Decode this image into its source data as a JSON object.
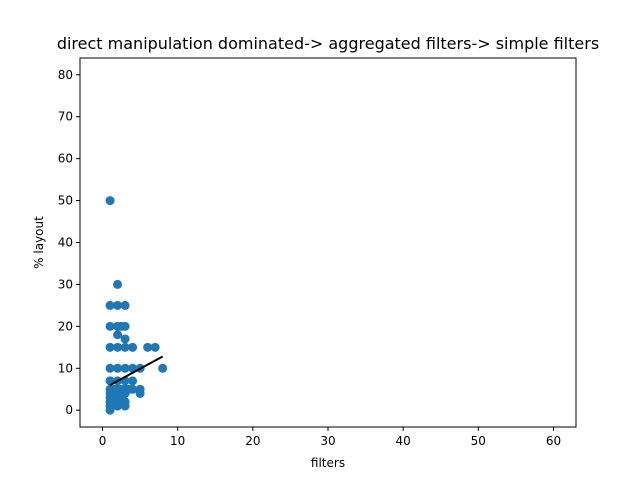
{
  "chart_data": {
    "type": "scatter",
    "title": "direct manipulation dominated-> aggregated filters-> simple filters",
    "xlabel": "filters",
    "ylabel": "% layout",
    "xlim": [
      -3.0,
      63.0
    ],
    "ylim": [
      -4.0,
      84.0
    ],
    "xticks": [
      0,
      10,
      20,
      30,
      40,
      50,
      60
    ],
    "yticks": [
      0,
      10,
      20,
      30,
      40,
      50,
      60,
      70,
      80
    ],
    "grid": false,
    "marker_color": "#1f77b4",
    "trend_color": "#000000",
    "points": [
      [
        1,
        50
      ],
      [
        2,
        30
      ],
      [
        1,
        25
      ],
      [
        2,
        25
      ],
      [
        3,
        25
      ],
      [
        1,
        20
      ],
      [
        2,
        20
      ],
      [
        2.5,
        20
      ],
      [
        3,
        20
      ],
      [
        2,
        18
      ],
      [
        3,
        17
      ],
      [
        1,
        15
      ],
      [
        2,
        15
      ],
      [
        3,
        15
      ],
      [
        4,
        15
      ],
      [
        6,
        15
      ],
      [
        7,
        15
      ],
      [
        1,
        10
      ],
      [
        2,
        10
      ],
      [
        3,
        10
      ],
      [
        4,
        10
      ],
      [
        5,
        10
      ],
      [
        8,
        10
      ],
      [
        1,
        7
      ],
      [
        2,
        7
      ],
      [
        3,
        7
      ],
      [
        4,
        7
      ],
      [
        1,
        5
      ],
      [
        1.5,
        5
      ],
      [
        2,
        5
      ],
      [
        2.5,
        5
      ],
      [
        3,
        5
      ],
      [
        3.5,
        5
      ],
      [
        4,
        5
      ],
      [
        5,
        5
      ],
      [
        1,
        4
      ],
      [
        2,
        4
      ],
      [
        3,
        4
      ],
      [
        5,
        4
      ],
      [
        1,
        3
      ],
      [
        1.5,
        3
      ],
      [
        2,
        3
      ],
      [
        2.5,
        3
      ],
      [
        1,
        2
      ],
      [
        1.5,
        2
      ],
      [
        2,
        2
      ],
      [
        2.5,
        2
      ],
      [
        3,
        2
      ],
      [
        1,
        1
      ],
      [
        2,
        1
      ],
      [
        3,
        1
      ],
      [
        1,
        0
      ]
    ],
    "trend_line": {
      "x": [
        1,
        8
      ],
      "y": [
        6,
        12.8
      ]
    }
  }
}
